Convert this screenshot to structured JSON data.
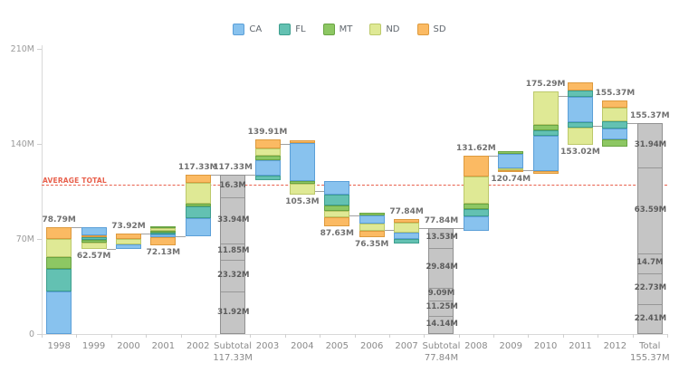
{
  "legend": {
    "items": [
      {
        "label": "CA"
      },
      {
        "label": "FL"
      },
      {
        "label": "MT"
      },
      {
        "label": "ND"
      },
      {
        "label": "SD"
      }
    ]
  },
  "colors": {
    "CA": {
      "fill": "#88c2ee",
      "border": "#5b9fd8"
    },
    "FL": {
      "fill": "#63c1b2",
      "border": "#3d9e8e"
    },
    "MT": {
      "fill": "#8dc763",
      "border": "#69a443"
    },
    "ND": {
      "fill": "#dfe995",
      "border": "#bcc96a"
    },
    "SD": {
      "fill": "#fbba63",
      "border": "#dd9a3e"
    },
    "total_fill": "#c5c5c5",
    "total_border": "#919191",
    "connector": "#a0a0a0",
    "average_line": "#e8604c"
  },
  "average_line": {
    "label": "AVERAGE TOTAL",
    "value_m": 110,
    "color": "#e8604c"
  },
  "chart_data": {
    "type": "waterfall",
    "title": "",
    "xlabel": "",
    "ylabel": "",
    "unit": "M",
    "ylim": [
      0,
      210
    ],
    "legend_position": "top",
    "y_ticks": [
      {
        "label": "210M",
        "m": 210
      },
      {
        "label": "140M",
        "m": 140
      },
      {
        "label": "70M",
        "m": 70
      },
      {
        "label": "0",
        "m": 0
      }
    ],
    "series_names": [
      "CA",
      "FL",
      "MT",
      "ND",
      "SD"
    ],
    "bars": [
      {
        "category": "1998",
        "kind": "year",
        "from_m": 0,
        "to_m": 78.79,
        "cumulative_m": 78.79,
        "label": "78.79M",
        "label_pos": "above",
        "segments": [
          {
            "state": "CA",
            "m": 31
          },
          {
            "state": "FL",
            "m": 17
          },
          {
            "state": "MT",
            "m": 8.7
          },
          {
            "state": "ND",
            "m": 13
          },
          {
            "state": "SD",
            "m": 9.09
          }
        ]
      },
      {
        "category": "1999",
        "kind": "year",
        "from_m": 62.57,
        "to_m": 78.79,
        "cumulative_m": 62.57,
        "label": "62.57M",
        "label_pos": "below",
        "segments": [
          {
            "state": "ND",
            "m": 4.5
          },
          {
            "state": "MT",
            "m": 2
          },
          {
            "state": "FL",
            "m": 2
          },
          {
            "state": "SD",
            "m": 1.2
          },
          {
            "state": "CA",
            "m": 6.52
          }
        ]
      },
      {
        "category": "2000",
        "kind": "year",
        "from_m": 62.57,
        "to_m": 73.92,
        "cumulative_m": 73.92,
        "label": "73.92M",
        "label_pos": "above",
        "segments": [
          {
            "state": "CA",
            "m": 3.2
          },
          {
            "state": "ND",
            "m": 4.3
          },
          {
            "state": "SD",
            "m": 3.85
          }
        ]
      },
      {
        "category": "2001",
        "kind": "year",
        "from_m": 65.3,
        "to_m": 79.3,
        "cumulative_m": 72.13,
        "label": "72.13M",
        "label_pos": "below",
        "segments": [
          {
            "state": "SD",
            "m": 6.2
          },
          {
            "state": "CA",
            "m": 1.6
          },
          {
            "state": "FL",
            "m": 1.4
          },
          {
            "state": "MT",
            "m": 1.6
          },
          {
            "state": "ND",
            "m": 1.6
          },
          {
            "state": "MT",
            "m": 1.6
          }
        ]
      },
      {
        "category": "2002",
        "kind": "year",
        "from_m": 72.13,
        "to_m": 117.33,
        "cumulative_m": 117.33,
        "label": "117.33M",
        "label_pos": "above",
        "segments": [
          {
            "state": "CA",
            "m": 13
          },
          {
            "state": "FL",
            "m": 9
          },
          {
            "state": "MT",
            "m": 2
          },
          {
            "state": "ND",
            "m": 15
          },
          {
            "state": "SD",
            "m": 6.2
          }
        ]
      },
      {
        "category": "Subtotal",
        "axis_line2": "117.33M",
        "kind": "total",
        "from_m": 0,
        "to_m": 117.33,
        "cumulative_m": 117.33,
        "label": "117.33M",
        "label_pos": "above",
        "segments": [
          {
            "m": 31.92,
            "label": "31.92M"
          },
          {
            "m": 23.32,
            "label": "23.32M"
          },
          {
            "m": 11.85,
            "label": "11.85M"
          },
          {
            "m": 33.94,
            "label": "33.94M"
          },
          {
            "m": 16.3,
            "label": "16.3M"
          }
        ]
      },
      {
        "category": "2003",
        "kind": "year",
        "from_m": 113.4,
        "to_m": 143.3,
        "cumulative_m": 139.91,
        "label": "139.91M",
        "label_pos": "above",
        "segments": [
          {
            "state": "FL",
            "m": 3.3
          },
          {
            "state": "CA",
            "m": 11
          },
          {
            "state": "MT",
            "m": 3.3
          },
          {
            "state": "ND",
            "m": 5.5
          },
          {
            "state": "SD",
            "m": 6.7
          }
        ]
      },
      {
        "category": "2004",
        "kind": "year",
        "from_m": 102.7,
        "to_m": 142.7,
        "cumulative_m": 105.3,
        "label": "105.3M",
        "label_pos": "below",
        "segments": [
          {
            "state": "ND",
            "m": 7.8
          },
          {
            "state": "MT",
            "m": 2.2
          },
          {
            "state": "CA",
            "m": 28
          },
          {
            "state": "SD",
            "m": 2
          }
        ]
      },
      {
        "category": "2005",
        "kind": "year",
        "from_m": 79.3,
        "to_m": 112.7,
        "cumulative_m": 87.63,
        "label": "87.63M",
        "label_pos": "below",
        "segments": [
          {
            "state": "SD",
            "m": 6.7
          },
          {
            "state": "ND",
            "m": 4.4
          },
          {
            "state": "MT",
            "m": 4.4
          },
          {
            "state": "FL",
            "m": 7.8
          },
          {
            "state": "CA",
            "m": 10.1
          }
        ]
      },
      {
        "category": "2006",
        "kind": "year",
        "from_m": 71.3,
        "to_m": 89.3,
        "cumulative_m": 76.35,
        "label": "76.35M",
        "label_pos": "below",
        "segments": [
          {
            "state": "SD",
            "m": 4.5
          },
          {
            "state": "ND",
            "m": 5.5
          },
          {
            "state": "CA",
            "m": 6
          },
          {
            "state": "MT",
            "m": 2
          }
        ]
      },
      {
        "category": "2007",
        "kind": "year",
        "from_m": 66.7,
        "to_m": 84.7,
        "cumulative_m": 77.84,
        "label": "77.84M",
        "label_pos": "above",
        "segments": [
          {
            "state": "FL",
            "m": 3.5
          },
          {
            "state": "CA",
            "m": 4.5
          },
          {
            "state": "ND",
            "m": 7.5
          },
          {
            "state": "SD",
            "m": 2.5
          }
        ]
      },
      {
        "category": "Subtotal",
        "axis_line2": "77.84M",
        "kind": "total",
        "from_m": 0,
        "to_m": 77.84,
        "cumulative_m": 77.84,
        "label": "77.84M",
        "label_pos": "above",
        "segments": [
          {
            "m": 14.14,
            "label": "14.14M"
          },
          {
            "m": 11.25,
            "label": "11.25M"
          },
          {
            "m": 9.09,
            "label": "9.09M"
          },
          {
            "m": 29.84,
            "label": "29.84M"
          },
          {
            "m": 13.53,
            "label": "13.53M"
          }
        ]
      },
      {
        "category": "2008",
        "kind": "year",
        "from_m": 76,
        "to_m": 131.62,
        "cumulative_m": 131.62,
        "label": "131.62M",
        "label_pos": "above",
        "segments": [
          {
            "state": "CA",
            "m": 10.5
          },
          {
            "state": "FL",
            "m": 5.5
          },
          {
            "state": "MT",
            "m": 3.8
          },
          {
            "state": "ND",
            "m": 20.3
          },
          {
            "state": "SD",
            "m": 15.52
          }
        ]
      },
      {
        "category": "2009",
        "kind": "year",
        "from_m": 119.3,
        "to_m": 134.7,
        "cumulative_m": 120.74,
        "label": "120.74M",
        "label_pos": "below",
        "segments": [
          {
            "state": "SD",
            "m": 1.4
          },
          {
            "state": "ND",
            "m": 1.6
          },
          {
            "state": "CA",
            "m": 10.4
          },
          {
            "state": "MT",
            "m": 2
          }
        ]
      },
      {
        "category": "2010",
        "kind": "year",
        "from_m": 118,
        "to_m": 178.7,
        "cumulative_m": 175.29,
        "label": "175.29M",
        "label_pos": "above",
        "segments": [
          {
            "state": "SD",
            "m": 2.2
          },
          {
            "state": "CA",
            "m": 25.5
          },
          {
            "state": "FL",
            "m": 4.5
          },
          {
            "state": "MT",
            "m": 3.5
          },
          {
            "state": "ND",
            "m": 25
          }
        ]
      },
      {
        "category": "2011",
        "kind": "year",
        "from_m": 139.3,
        "to_m": 185.3,
        "cumulative_m": 153.02,
        "label": "153.02M",
        "label_pos": "below",
        "segments": [
          {
            "state": "ND",
            "m": 13
          },
          {
            "state": "FL",
            "m": 3.5
          },
          {
            "state": "CA",
            "m": 19
          },
          {
            "state": "FL",
            "m": 4.5
          },
          {
            "state": "SD",
            "m": 6
          }
        ]
      },
      {
        "category": "2012",
        "kind": "year",
        "from_m": 138,
        "to_m": 172,
        "cumulative_m": 155.37,
        "label": "155.37M",
        "label_pos": "above",
        "segments": [
          {
            "state": "MT",
            "m": 5.5
          },
          {
            "state": "CA",
            "m": 7.8
          },
          {
            "state": "FL",
            "m": 5.5
          },
          {
            "state": "ND",
            "m": 9.7
          },
          {
            "state": "SD",
            "m": 5.5
          }
        ]
      },
      {
        "category": "Total",
        "axis_line2": "155.37M",
        "kind": "total",
        "from_m": 0,
        "to_m": 155.37,
        "cumulative_m": 155.37,
        "label": "155.37M",
        "label_pos": "above",
        "segments": [
          {
            "m": 22.41,
            "label": "22.41M"
          },
          {
            "m": 22.73,
            "label": "22.73M"
          },
          {
            "m": 14.7,
            "label": "14.7M"
          },
          {
            "m": 63.59,
            "label": "63.59M"
          },
          {
            "m": 31.94,
            "label": "31.94M"
          }
        ]
      }
    ]
  }
}
